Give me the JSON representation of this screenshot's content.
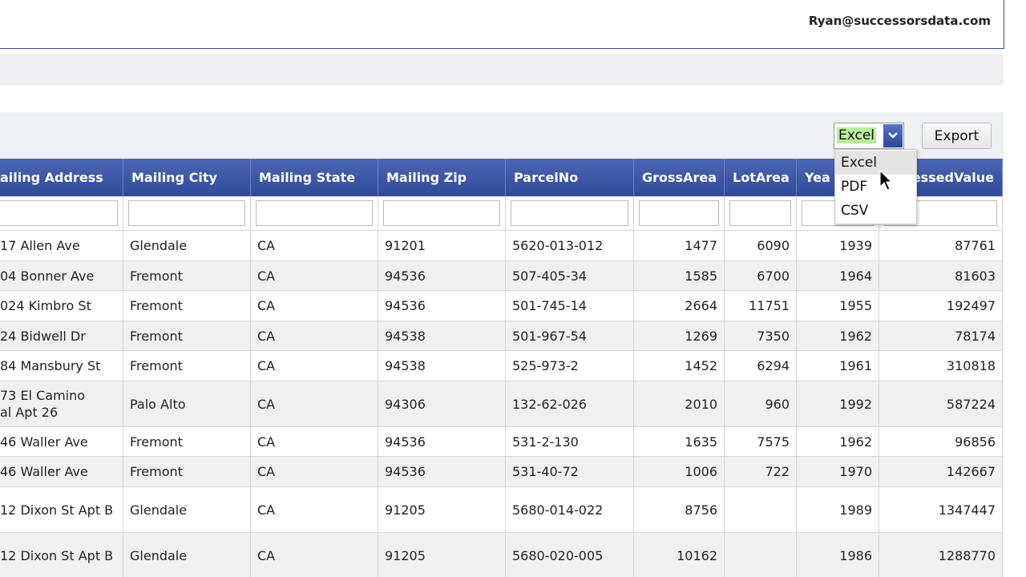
{
  "header": {
    "user_email": "Ryan@successorsdata.com"
  },
  "toolbar": {
    "format_select": "Excel",
    "format_options": [
      "Excel",
      "PDF",
      "CSV"
    ],
    "export_button": "Export"
  },
  "table": {
    "columns": [
      "ailing Address",
      "Mailing City",
      "Mailing State",
      "Mailing Zip",
      "ParcelNo",
      "GrossArea",
      "LotArea",
      "Yea",
      "essedValue"
    ],
    "rows": [
      [
        "17 Allen Ave",
        "Glendale",
        "CA",
        "91201",
        "5620-013-012",
        "1477",
        "6090",
        "1939",
        "87761"
      ],
      [
        "04 Bonner Ave",
        "Fremont",
        "CA",
        "94536",
        "507-405-34",
        "1585",
        "6700",
        "1964",
        "81603"
      ],
      [
        "024 Kimbro St",
        "Fremont",
        "CA",
        "94536",
        "501-745-14",
        "2664",
        "11751",
        "1955",
        "192497"
      ],
      [
        "24 Bidwell Dr",
        "Fremont",
        "CA",
        "94538",
        "501-967-54",
        "1269",
        "7350",
        "1962",
        "78174"
      ],
      [
        "84 Mansbury St",
        "Fremont",
        "CA",
        "94538",
        "525-973-2",
        "1452",
        "6294",
        "1961",
        "310818"
      ],
      [
        "73 El Camino\nal Apt 26",
        "Palo Alto",
        "CA",
        "94306",
        "132-62-026",
        "2010",
        "960",
        "1992",
        "587224"
      ],
      [
        "46 Waller Ave",
        "Fremont",
        "CA",
        "94536",
        "531-2-130",
        "1635",
        "7575",
        "1962",
        "96856"
      ],
      [
        "46 Waller Ave",
        "Fremont",
        "CA",
        "94536",
        "531-40-72",
        "1006",
        "722",
        "1970",
        "142667"
      ],
      [
        "12 Dixon St Apt B",
        "Glendale",
        "CA",
        "91205",
        "5680-014-022",
        "8756",
        null,
        "1989",
        "1347447"
      ],
      [
        "12 Dixon St Apt B",
        "Glendale",
        "CA",
        "91205",
        "5680-020-005",
        "10162",
        null,
        "1986",
        "1288770"
      ]
    ]
  }
}
